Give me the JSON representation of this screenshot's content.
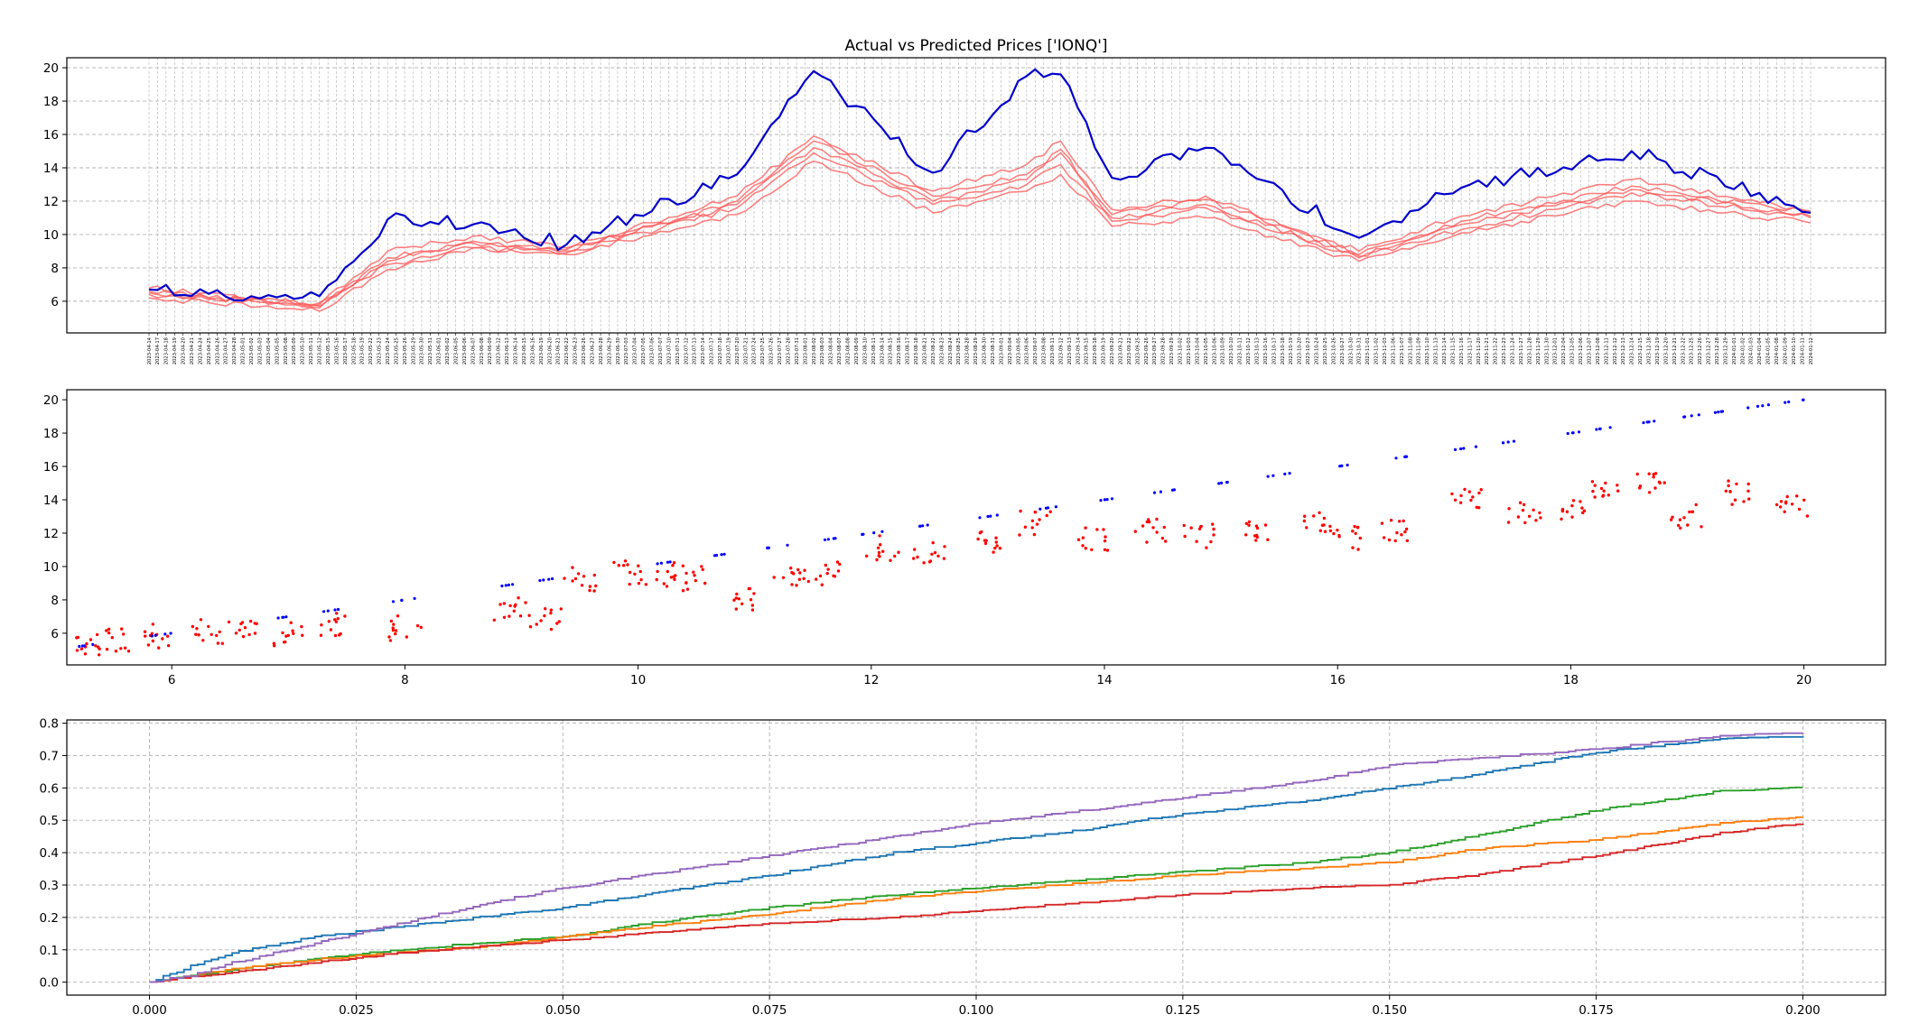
{
  "chart_data": [
    {
      "type": "line",
      "title": "Actual vs Predicted Prices ['IONQ']",
      "xlabel": "",
      "ylabel": "",
      "grid": true,
      "ylim": [
        4.1,
        20.6
      ],
      "yticks": [
        6,
        8,
        10,
        12,
        14,
        16,
        18,
        20
      ],
      "x_start_date": "2023-04-14",
      "x_end_date": "2024-01-12",
      "x_tick_rule": "every trading day (Mon-Fri), labels rotated 90 degrees",
      "series": [
        {
          "color": "#0000cc",
          "sample_x_dates": [
            "2023-04-14",
            "2023-05-12",
            "2023-05-24",
            "2023-06-07",
            "2023-06-22",
            "2023-07-20",
            "2023-08-02",
            "2023-08-22",
            "2023-09-06",
            "2023-09-12",
            "2023-09-20",
            "2023-10-05",
            "2023-10-31",
            "2023-11-16",
            "2023-12-14",
            "2024-01-12"
          ],
          "values": [
            6.7,
            6.3,
            10.9,
            10.6,
            9.4,
            13.6,
            19.8,
            13.7,
            19.5,
            19.6,
            13.4,
            15.2,
            9.8,
            12.8,
            15.0,
            11.3
          ]
        },
        {
          "color": "#ff5555",
          "sample_x_dates": [
            "2023-04-14",
            "2023-05-12",
            "2023-05-24",
            "2023-06-07",
            "2023-06-22",
            "2023-07-20",
            "2023-08-02",
            "2023-08-22",
            "2023-09-06",
            "2023-09-12",
            "2023-09-20",
            "2023-10-05",
            "2023-10-31",
            "2023-11-16",
            "2023-12-14",
            "2024-01-12"
          ],
          "values": [
            6.6,
            5.6,
            8.6,
            9.5,
            9.0,
            12.0,
            15.6,
            12.3,
            13.6,
            14.9,
            11.2,
            12.1,
            8.8,
            10.8,
            12.9,
            11.3
          ]
        },
        {
          "color": "#ff5555",
          "sample_x_dates": [
            "2023-04-14",
            "2023-05-12",
            "2023-05-24",
            "2023-06-07",
            "2023-06-22",
            "2023-07-20",
            "2023-08-02",
            "2023-08-22",
            "2023-09-06",
            "2023-09-12",
            "2023-09-20",
            "2023-10-05",
            "2023-10-31",
            "2023-11-16",
            "2023-12-14",
            "2024-01-12"
          ],
          "values": [
            6.4,
            5.9,
            8.2,
            9.2,
            8.9,
            11.6,
            14.9,
            11.8,
            13.0,
            14.2,
            10.8,
            11.6,
            8.6,
            10.3,
            12.5,
            11.0
          ]
        },
        {
          "color": "#ff5555",
          "sample_x_dates": [
            "2023-04-14",
            "2023-05-12",
            "2023-05-24",
            "2023-06-07",
            "2023-06-22",
            "2023-07-20",
            "2023-08-02",
            "2023-08-22",
            "2023-09-06",
            "2023-09-12",
            "2023-09-20",
            "2023-10-05",
            "2023-10-31",
            "2023-11-16",
            "2023-12-14",
            "2024-01-12"
          ],
          "values": [
            6.2,
            5.4,
            7.9,
            9.2,
            8.8,
            11.2,
            14.4,
            11.3,
            12.6,
            13.6,
            10.5,
            11.0,
            8.4,
            10.1,
            12.0,
            10.7
          ]
        },
        {
          "color": "#ff5555",
          "sample_x_dates": [
            "2023-04-14",
            "2023-05-12",
            "2023-05-24",
            "2023-06-07",
            "2023-06-22",
            "2023-07-20",
            "2023-08-02",
            "2023-08-22",
            "2023-09-06",
            "2023-09-12",
            "2023-09-20",
            "2023-10-05",
            "2023-10-31",
            "2023-11-16",
            "2023-12-14",
            "2024-01-12"
          ],
          "values": [
            6.8,
            5.8,
            9.0,
            9.9,
            9.2,
            12.3,
            15.9,
            12.6,
            14.2,
            15.6,
            11.5,
            12.3,
            9.0,
            11.1,
            13.3,
            11.4
          ]
        },
        {
          "color": "#ff5555",
          "sample_x_dates": [
            "2023-04-14",
            "2023-05-12",
            "2023-05-24",
            "2023-06-07",
            "2023-06-22",
            "2023-07-20",
            "2023-08-02",
            "2023-08-22",
            "2023-09-06",
            "2023-09-12",
            "2023-09-20",
            "2023-10-05",
            "2023-10-31",
            "2023-11-16",
            "2023-12-14",
            "2024-01-12"
          ],
          "values": [
            6.5,
            5.7,
            8.4,
            9.6,
            9.1,
            11.8,
            15.2,
            12.0,
            13.3,
            15.1,
            11.0,
            11.8,
            8.7,
            10.6,
            12.7,
            11.1
          ]
        }
      ]
    },
    {
      "type": "scatter",
      "title": "",
      "xlabel": "",
      "ylabel": "",
      "grid": false,
      "xlim": [
        5.1,
        20.7
      ],
      "ylim": [
        4.1,
        20.6
      ],
      "xticks": [
        6,
        8,
        10,
        12,
        14,
        16,
        18,
        20
      ],
      "yticks": [
        6,
        8,
        10,
        12,
        14,
        16,
        18,
        20
      ],
      "series": [
        {
          "color": "#0000ff",
          "marker": "small dot",
          "points": [
            [
              5.3,
              5.3
            ],
            [
              5.9,
              5.9
            ],
            [
              7.0,
              7.0
            ],
            [
              7.35,
              7.35
            ],
            [
              8.0,
              8.0
            ],
            [
              8.9,
              8.9
            ],
            [
              9.2,
              9.2
            ],
            [
              10.2,
              10.2
            ],
            [
              10.7,
              10.7
            ],
            [
              11.2,
              11.2
            ],
            [
              11.6,
              11.6
            ],
            [
              12.0,
              12.0
            ],
            [
              12.5,
              12.5
            ],
            [
              13.0,
              13.0
            ],
            [
              13.5,
              13.5
            ],
            [
              14.0,
              14.0
            ],
            [
              14.5,
              14.5
            ],
            [
              15.0,
              15.0
            ],
            [
              15.5,
              15.5
            ],
            [
              16.0,
              16.0
            ],
            [
              16.5,
              16.5
            ],
            [
              17.1,
              17.1
            ],
            [
              17.5,
              17.5
            ],
            [
              18.0,
              18.0
            ],
            [
              18.3,
              18.3
            ],
            [
              18.7,
              18.7
            ],
            [
              19.0,
              19.0
            ],
            [
              19.3,
              19.3
            ],
            [
              19.6,
              19.6
            ],
            [
              19.9,
              19.9
            ]
          ]
        },
        {
          "color": "#ff0000",
          "marker": "small dot",
          "points": [
            [
              5.3,
              5.4
            ],
            [
              5.5,
              5.6
            ],
            [
              5.9,
              5.8
            ],
            [
              6.3,
              6.1
            ],
            [
              6.6,
              6.4
            ],
            [
              7.0,
              6.0
            ],
            [
              7.35,
              6.5
            ],
            [
              8.0,
              6.3
            ],
            [
              8.9,
              7.5
            ],
            [
              9.2,
              6.8
            ],
            [
              9.5,
              9.2
            ],
            [
              9.9,
              9.6
            ],
            [
              10.2,
              9.5
            ],
            [
              10.5,
              9.3
            ],
            [
              10.9,
              8.1
            ],
            [
              11.3,
              9.2
            ],
            [
              11.6,
              9.6
            ],
            [
              12.1,
              11.1
            ],
            [
              12.5,
              10.9
            ],
            [
              13.0,
              11.4
            ],
            [
              13.4,
              12.6
            ],
            [
              13.9,
              11.6
            ],
            [
              14.4,
              12.1
            ],
            [
              14.8,
              11.8
            ],
            [
              15.3,
              12.0
            ],
            [
              15.8,
              12.7
            ],
            [
              16.1,
              11.7
            ],
            [
              16.5,
              12.2
            ],
            [
              17.1,
              14.0
            ],
            [
              17.6,
              13.2
            ],
            [
              18.0,
              13.4
            ],
            [
              18.3,
              14.5
            ],
            [
              18.7,
              15.0
            ],
            [
              19.0,
              13.0
            ],
            [
              19.4,
              14.4
            ],
            [
              19.9,
              13.7
            ]
          ]
        }
      ]
    },
    {
      "type": "line",
      "title": "",
      "xlabel": "",
      "ylabel": "",
      "grid": true,
      "step": true,
      "xlim": [
        -0.01,
        0.21
      ],
      "ylim": [
        -0.04,
        0.81
      ],
      "xticks": [
        "0.000",
        "0.025",
        "0.050",
        "0.075",
        "0.100",
        "0.125",
        "0.150",
        "0.175",
        "0.200"
      ],
      "yticks": [
        "0.0",
        "0.1",
        "0.2",
        "0.3",
        "0.4",
        "0.5",
        "0.6",
        "0.7",
        "0.8"
      ],
      "series": [
        {
          "color": "#9467bd",
          "x": [
            0.0,
            0.005,
            0.01,
            0.02,
            0.03,
            0.04,
            0.05,
            0.06,
            0.075,
            0.09,
            0.1,
            0.11,
            0.125,
            0.14,
            0.15,
            0.16,
            0.175,
            0.19,
            0.2
          ],
          "values": [
            0.0,
            0.02,
            0.06,
            0.12,
            0.18,
            0.24,
            0.29,
            0.33,
            0.39,
            0.45,
            0.49,
            0.52,
            0.57,
            0.62,
            0.67,
            0.69,
            0.72,
            0.76,
            0.77
          ]
        },
        {
          "color": "#1f77b4",
          "x": [
            0.0,
            0.005,
            0.01,
            0.02,
            0.03,
            0.04,
            0.05,
            0.06,
            0.075,
            0.09,
            0.1,
            0.11,
            0.125,
            0.14,
            0.15,
            0.16,
            0.175,
            0.19,
            0.2
          ],
          "values": [
            0.0,
            0.05,
            0.09,
            0.14,
            0.17,
            0.2,
            0.23,
            0.27,
            0.33,
            0.4,
            0.43,
            0.46,
            0.52,
            0.56,
            0.6,
            0.64,
            0.71,
            0.75,
            0.76
          ]
        },
        {
          "color": "#2ca02c",
          "x": [
            0.0,
            0.01,
            0.02,
            0.03,
            0.04,
            0.05,
            0.06,
            0.075,
            0.09,
            0.1,
            0.11,
            0.125,
            0.14,
            0.15,
            0.16,
            0.175,
            0.19,
            0.2
          ],
          "values": [
            0.0,
            0.04,
            0.07,
            0.1,
            0.12,
            0.14,
            0.18,
            0.23,
            0.27,
            0.29,
            0.31,
            0.34,
            0.37,
            0.4,
            0.45,
            0.53,
            0.59,
            0.6
          ]
        },
        {
          "color": "#ff7f0e",
          "x": [
            0.0,
            0.01,
            0.02,
            0.03,
            0.04,
            0.05,
            0.06,
            0.075,
            0.09,
            0.1,
            0.11,
            0.125,
            0.14,
            0.15,
            0.16,
            0.175,
            0.19,
            0.2
          ],
          "values": [
            0.0,
            0.04,
            0.07,
            0.09,
            0.11,
            0.14,
            0.17,
            0.21,
            0.26,
            0.28,
            0.3,
            0.33,
            0.35,
            0.37,
            0.41,
            0.44,
            0.49,
            0.51
          ]
        },
        {
          "color": "#d62728",
          "x": [
            0.0,
            0.01,
            0.02,
            0.03,
            0.04,
            0.05,
            0.06,
            0.075,
            0.09,
            0.1,
            0.11,
            0.125,
            0.14,
            0.15,
            0.16,
            0.175,
            0.19,
            0.2
          ],
          "values": [
            0.0,
            0.03,
            0.06,
            0.09,
            0.11,
            0.13,
            0.15,
            0.18,
            0.2,
            0.22,
            0.24,
            0.27,
            0.29,
            0.3,
            0.33,
            0.39,
            0.46,
            0.49
          ]
        }
      ]
    }
  ]
}
